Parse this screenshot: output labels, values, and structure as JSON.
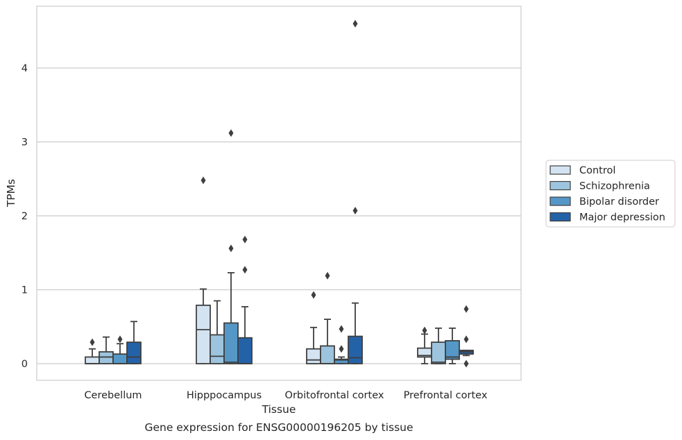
{
  "chart_data": {
    "type": "boxplot",
    "title": "Gene expression for ENSG00000196205 by tissue",
    "xlabel": "Tissue",
    "ylabel": "TPMs",
    "ylim": [
      -0.22,
      4.83
    ],
    "yticks": [
      0,
      1,
      2,
      3,
      4
    ],
    "grid": "horizontal",
    "legend_position": "right",
    "categories": [
      "Cerebellum",
      "Hipppocampus",
      "Orbitofrontal cortex",
      "Prefrontal cortex"
    ],
    "series": [
      {
        "name": "Control",
        "color": "#d3e3f2",
        "boxes": [
          {
            "whislo": 0.0,
            "q1": 0.0,
            "med": 0.0,
            "q3": 0.09,
            "whishi": 0.2,
            "fliers": [
              0.29
            ]
          },
          {
            "whislo": 0.0,
            "q1": 0.0,
            "med": 0.46,
            "q3": 0.79,
            "whishi": 1.01,
            "fliers": [
              2.48
            ]
          },
          {
            "whislo": 0.0,
            "q1": 0.0,
            "med": 0.05,
            "q3": 0.2,
            "whishi": 0.49,
            "fliers": [
              0.93
            ]
          },
          {
            "whislo": 0.0,
            "q1": 0.09,
            "med": 0.11,
            "q3": 0.21,
            "whishi": 0.4,
            "fliers": [
              0.45
            ]
          }
        ]
      },
      {
        "name": "Schizophrenia",
        "color": "#9dc4de",
        "boxes": [
          {
            "whislo": 0.0,
            "q1": 0.0,
            "med": 0.09,
            "q3": 0.16,
            "whishi": 0.36,
            "fliers": []
          },
          {
            "whislo": 0.0,
            "q1": 0.0,
            "med": 0.1,
            "q3": 0.39,
            "whishi": 0.85,
            "fliers": []
          },
          {
            "whislo": 0.0,
            "q1": 0.0,
            "med": 0.0,
            "q3": 0.24,
            "whishi": 0.6,
            "fliers": [
              1.19
            ]
          },
          {
            "whislo": 0.0,
            "q1": 0.0,
            "med": 0.02,
            "q3": 0.29,
            "whishi": 0.48,
            "fliers": []
          }
        ]
      },
      {
        "name": "Bipolar disorder",
        "color": "#5598c7",
        "boxes": [
          {
            "whislo": 0.0,
            "q1": 0.0,
            "med": 0.0,
            "q3": 0.13,
            "whishi": 0.27,
            "fliers": [
              0.33
            ]
          },
          {
            "whislo": 0.0,
            "q1": 0.0,
            "med": 0.02,
            "q3": 0.55,
            "whishi": 1.23,
            "fliers": [
              3.12,
              1.56
            ]
          },
          {
            "whislo": 0.0,
            "q1": 0.0,
            "med": 0.05,
            "q3": 0.06,
            "whishi": 0.09,
            "fliers": [
              0.2,
              0.47
            ]
          },
          {
            "whislo": 0.0,
            "q1": 0.06,
            "med": 0.09,
            "q3": 0.31,
            "whishi": 0.48,
            "fliers": []
          }
        ]
      },
      {
        "name": "Major depression",
        "color": "#2462a8",
        "boxes": [
          {
            "whislo": 0.0,
            "q1": 0.0,
            "med": 0.09,
            "q3": 0.29,
            "whishi": 0.57,
            "fliers": []
          },
          {
            "whislo": 0.0,
            "q1": 0.0,
            "med": 0.0,
            "q3": 0.35,
            "whishi": 0.77,
            "fliers": [
              1.68,
              1.27
            ]
          },
          {
            "whislo": 0.0,
            "q1": 0.0,
            "med": 0.08,
            "q3": 0.37,
            "whishi": 0.82,
            "fliers": [
              4.6,
              2.07
            ]
          },
          {
            "whislo": 0.11,
            "q1": 0.13,
            "med": 0.16,
            "q3": 0.18,
            "whishi": 0.18,
            "fliers": [
              0.74,
              0.33,
              0.0
            ]
          }
        ]
      }
    ]
  }
}
